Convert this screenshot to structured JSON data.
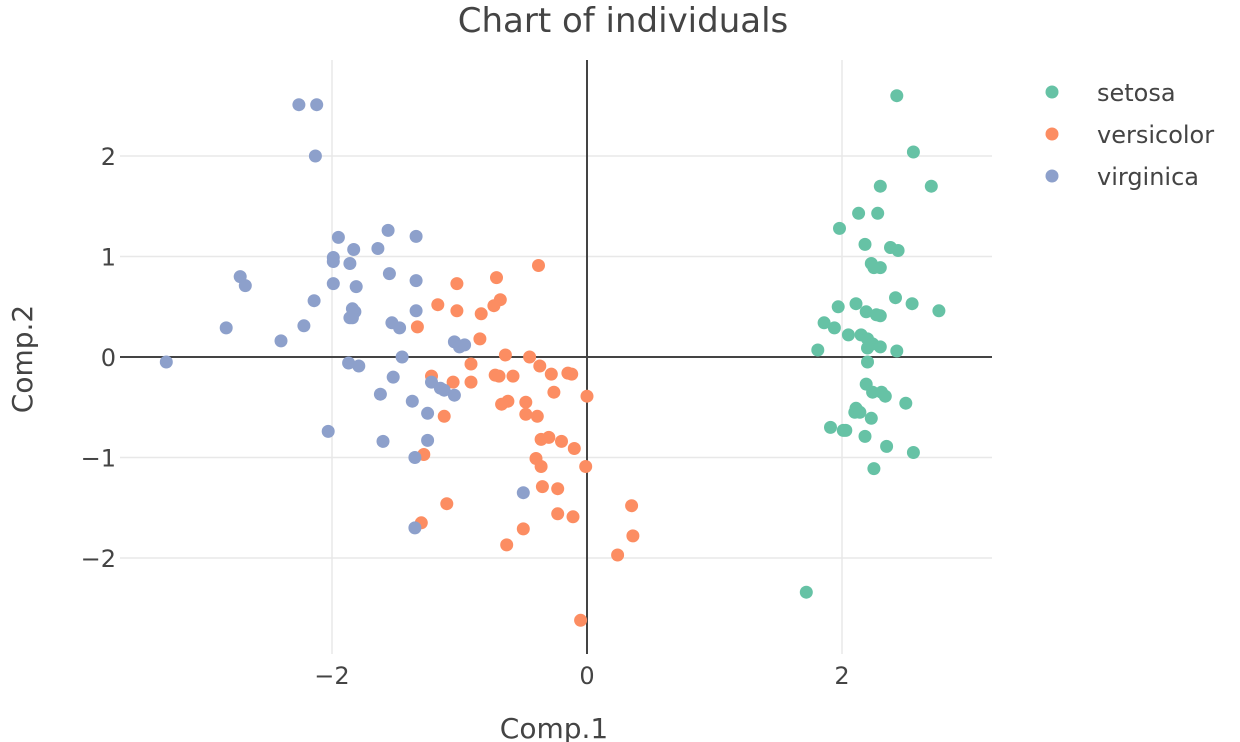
{
  "chart_data": {
    "type": "scatter",
    "title": "Chart of individuals",
    "xlabel": "Comp.1",
    "ylabel": "Comp.2",
    "xlim": [
      -3.5,
      3.2
    ],
    "ylim": [
      -2.95,
      2.95
    ],
    "xticks": [
      -2,
      0,
      2
    ],
    "yticks": [
      -2,
      -1,
      0,
      1,
      2
    ],
    "xtick_labels": [
      "−2",
      "0",
      "2"
    ],
    "ytick_labels": [
      "−2",
      "−1",
      "0",
      "1",
      "2"
    ],
    "grid": true,
    "legend_position": "top-right",
    "series": [
      {
        "name": "setosa",
        "color": "#66c2a5",
        "points": [
          [
            2.43,
            2.6
          ],
          [
            2.56,
            2.04
          ],
          [
            2.3,
            1.7
          ],
          [
            2.7,
            1.7
          ],
          [
            2.13,
            1.43
          ],
          [
            2.28,
            1.43
          ],
          [
            1.98,
            1.28
          ],
          [
            2.18,
            1.12
          ],
          [
            2.38,
            1.09
          ],
          [
            2.44,
            1.06
          ],
          [
            2.23,
            0.93
          ],
          [
            2.25,
            0.89
          ],
          [
            2.3,
            0.89
          ],
          [
            2.42,
            0.59
          ],
          [
            2.11,
            0.53
          ],
          [
            2.55,
            0.53
          ],
          [
            1.97,
            0.5
          ],
          [
            2.76,
            0.46
          ],
          [
            2.19,
            0.45
          ],
          [
            2.27,
            0.42
          ],
          [
            2.3,
            0.41
          ],
          [
            1.86,
            0.34
          ],
          [
            1.94,
            0.29
          ],
          [
            2.05,
            0.22
          ],
          [
            2.15,
            0.22
          ],
          [
            2.2,
            0.18
          ],
          [
            2.24,
            0.13
          ],
          [
            2.3,
            0.1
          ],
          [
            2.2,
            0.09
          ],
          [
            1.81,
            0.07
          ],
          [
            2.43,
            0.06
          ],
          [
            2.2,
            -0.05
          ],
          [
            2.19,
            -0.27
          ],
          [
            2.24,
            -0.35
          ],
          [
            2.31,
            -0.35
          ],
          [
            2.34,
            -0.39
          ],
          [
            2.5,
            -0.46
          ],
          [
            2.11,
            -0.51
          ],
          [
            2.1,
            -0.55
          ],
          [
            2.14,
            -0.55
          ],
          [
            2.23,
            -0.61
          ],
          [
            1.91,
            -0.7
          ],
          [
            2.01,
            -0.73
          ],
          [
            2.03,
            -0.73
          ],
          [
            2.18,
            -0.79
          ],
          [
            2.35,
            -0.89
          ],
          [
            2.56,
            -0.95
          ],
          [
            2.25,
            -1.11
          ],
          [
            1.72,
            -2.34
          ]
        ]
      },
      {
        "name": "versicolor",
        "color": "#fc8d62",
        "points": [
          [
            -0.38,
            0.91
          ],
          [
            -0.71,
            0.79
          ],
          [
            -1.02,
            0.73
          ],
          [
            -0.68,
            0.57
          ],
          [
            -1.17,
            0.52
          ],
          [
            -0.73,
            0.51
          ],
          [
            -1.02,
            0.46
          ],
          [
            -0.83,
            0.43
          ],
          [
            -1.33,
            0.3
          ],
          [
            -0.84,
            0.18
          ],
          [
            -0.64,
            0.02
          ],
          [
            -0.45,
            0.0
          ],
          [
            -0.91,
            -0.07
          ],
          [
            -0.37,
            -0.09
          ],
          [
            -0.72,
            -0.18
          ],
          [
            -0.69,
            -0.19
          ],
          [
            -0.15,
            -0.16
          ],
          [
            -0.12,
            -0.17
          ],
          [
            -0.28,
            -0.17
          ],
          [
            -0.58,
            -0.19
          ],
          [
            -1.22,
            -0.19
          ],
          [
            -0.91,
            -0.25
          ],
          [
            -1.05,
            -0.25
          ],
          [
            -0.26,
            -0.35
          ],
          [
            0.0,
            -0.39
          ],
          [
            -0.62,
            -0.44
          ],
          [
            -0.67,
            -0.47
          ],
          [
            -0.48,
            -0.45
          ],
          [
            -1.12,
            -0.59
          ],
          [
            -0.39,
            -0.59
          ],
          [
            -0.48,
            -0.57
          ],
          [
            -0.3,
            -0.8
          ],
          [
            -0.36,
            -0.82
          ],
          [
            -0.2,
            -0.84
          ],
          [
            -0.1,
            -0.91
          ],
          [
            -1.28,
            -0.97
          ],
          [
            -0.4,
            -1.01
          ],
          [
            -0.36,
            -1.09
          ],
          [
            -0.01,
            -1.09
          ],
          [
            -0.35,
            -1.29
          ],
          [
            -0.23,
            -1.31
          ],
          [
            -1.1,
            -1.46
          ],
          [
            0.35,
            -1.48
          ],
          [
            -0.23,
            -1.56
          ],
          [
            -0.11,
            -1.59
          ],
          [
            -1.3,
            -1.65
          ],
          [
            -0.5,
            -1.71
          ],
          [
            0.36,
            -1.78
          ],
          [
            -0.63,
            -1.87
          ],
          [
            0.24,
            -1.97
          ],
          [
            -0.05,
            -2.62
          ]
        ]
      },
      {
        "name": "virginica",
        "color": "#8da0cb",
        "points": [
          [
            -2.26,
            2.51
          ],
          [
            -2.12,
            2.51
          ],
          [
            -2.13,
            2.0
          ],
          [
            -1.56,
            1.26
          ],
          [
            -1.95,
            1.19
          ],
          [
            -1.34,
            1.2
          ],
          [
            -1.64,
            1.08
          ],
          [
            -1.83,
            1.07
          ],
          [
            -1.99,
            0.99
          ],
          [
            -1.99,
            0.95
          ],
          [
            -1.86,
            0.93
          ],
          [
            -1.55,
            0.83
          ],
          [
            -2.72,
            0.8
          ],
          [
            -2.68,
            0.71
          ],
          [
            -1.99,
            0.73
          ],
          [
            -1.81,
            0.7
          ],
          [
            -1.34,
            0.76
          ],
          [
            -1.84,
            0.48
          ],
          [
            -1.82,
            0.45
          ],
          [
            -2.14,
            0.56
          ],
          [
            -1.84,
            0.39
          ],
          [
            -1.53,
            0.34
          ],
          [
            -1.86,
            0.39
          ],
          [
            -1.47,
            0.29
          ],
          [
            -2.22,
            0.31
          ],
          [
            -2.83,
            0.29
          ],
          [
            -1.34,
            0.46
          ],
          [
            -2.4,
            0.16
          ],
          [
            -1.04,
            0.15
          ],
          [
            -1.0,
            0.1
          ],
          [
            -0.96,
            0.12
          ],
          [
            -1.45,
            0.0
          ],
          [
            -1.87,
            -0.06
          ],
          [
            -1.79,
            -0.09
          ],
          [
            -1.52,
            -0.2
          ],
          [
            -1.22,
            -0.25
          ],
          [
            -1.15,
            -0.31
          ],
          [
            -1.12,
            -0.33
          ],
          [
            -1.04,
            -0.38
          ],
          [
            -1.62,
            -0.37
          ],
          [
            -1.37,
            -0.44
          ],
          [
            -1.25,
            -0.56
          ],
          [
            -2.03,
            -0.74
          ],
          [
            -1.6,
            -0.84
          ],
          [
            -1.25,
            -0.83
          ],
          [
            -1.35,
            -1.0
          ],
          [
            -0.5,
            -1.35
          ],
          [
            -1.35,
            -1.7
          ],
          [
            -3.3,
            -0.05
          ]
        ]
      }
    ]
  }
}
